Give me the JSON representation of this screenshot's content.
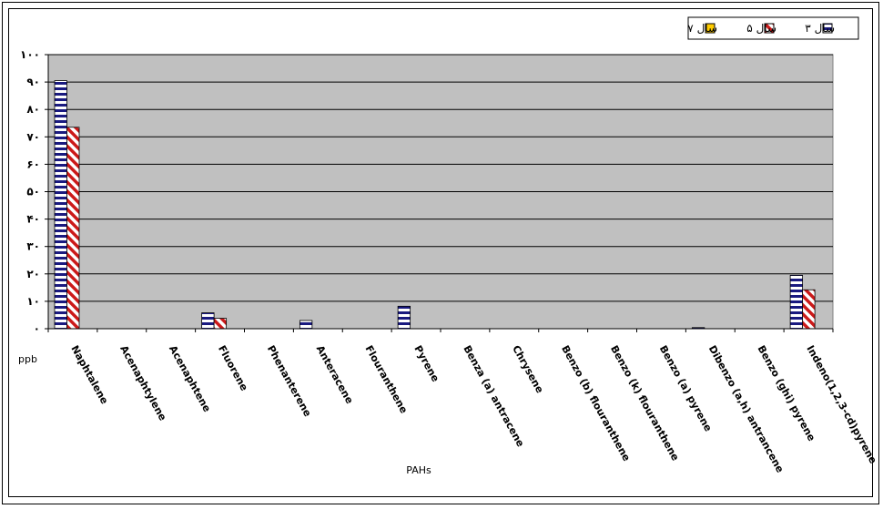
{
  "chart_data": {
    "type": "bar",
    "title": "",
    "xlabel": "PAHs",
    "ylabel": "ppb",
    "ylim": [
      0,
      100
    ],
    "yticks": [
      0,
      10,
      20,
      30,
      40,
      50,
      60,
      70,
      80,
      90,
      100
    ],
    "ytick_labels": [
      "۰",
      "۱۰",
      "۲۰",
      "۳۰",
      "۴۰",
      "۵۰",
      "۶۰",
      "۷۰",
      "۸۰",
      "۹۰",
      "۱۰۰"
    ],
    "grid": true,
    "legend_position": "top-right",
    "categories": [
      "Naphtalene",
      "Acenaphtylene",
      "Acenaphtene",
      "Fluorene",
      "Phenanterene",
      "Anteracene",
      "Flouranthene",
      "Pyrene",
      "Benza (a) antracene",
      "Chrysene",
      "Benzo (b) flouranthene",
      "Benzo (k) flouranthene",
      "Benzo (a) pyrene",
      "Dibenzo (a,h) antrancene",
      "Benzo (ghi) pyrene",
      "Indeno(1,2,3-cd)pyrene"
    ],
    "series": [
      {
        "name": "سال ۳",
        "color": "#1a1a80",
        "pattern": "horizontal-stripes",
        "values": [
          90.5,
          0,
          0,
          5.8,
          0,
          3.0,
          0,
          8.2,
          0,
          0,
          0,
          0,
          0,
          0.4,
          0,
          19.5
        ]
      },
      {
        "name": "سال ۵",
        "color": "#cc1a1a",
        "pattern": "diagonal-stripes",
        "values": [
          73.5,
          0,
          0,
          3.8,
          0,
          0,
          0,
          0,
          0,
          0,
          0,
          0,
          0,
          0,
          0,
          14.2
        ]
      },
      {
        "name": "سال ۷",
        "color": "#ffcc00",
        "pattern": "solid",
        "values": [
          0,
          0,
          0,
          0,
          0,
          0,
          0,
          0,
          0,
          0,
          0,
          0,
          0,
          0,
          0,
          0
        ]
      }
    ],
    "plot_background": "#c0c0c0"
  }
}
